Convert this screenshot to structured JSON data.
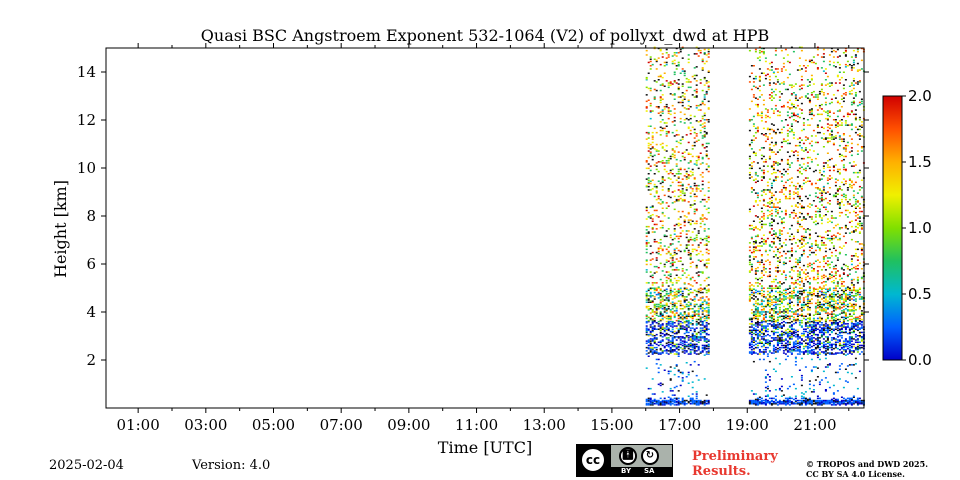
{
  "chart_data": {
    "type": "heatmap",
    "title": "Quasi BSC Angstroem Exponent 532-1064 (V2) of pollyxt_dwd at HPB",
    "xlabel": "Time [UTC]",
    "ylabel": "Height [km]",
    "xlim_hours": [
      0.05,
      22.45
    ],
    "ylim_km": [
      0,
      15
    ],
    "x_ticks": [
      {
        "hour": 1,
        "label": "01:00"
      },
      {
        "hour": 3,
        "label": "03:00"
      },
      {
        "hour": 5,
        "label": "05:00"
      },
      {
        "hour": 7,
        "label": "07:00"
      },
      {
        "hour": 9,
        "label": "09:00"
      },
      {
        "hour": 11,
        "label": "11:00"
      },
      {
        "hour": 13,
        "label": "13:00"
      },
      {
        "hour": 15,
        "label": "15:00"
      },
      {
        "hour": 17,
        "label": "17:00"
      },
      {
        "hour": 19,
        "label": "19:00"
      },
      {
        "hour": 21,
        "label": "21:00"
      }
    ],
    "y_ticks": [
      {
        "value": 2,
        "label": "2"
      },
      {
        "value": 4,
        "label": "4"
      },
      {
        "value": 6,
        "label": "6"
      },
      {
        "value": 8,
        "label": "8"
      },
      {
        "value": 10,
        "label": "10"
      },
      {
        "value": 12,
        "label": "12"
      },
      {
        "value": 14,
        "label": "14"
      }
    ],
    "colorbar": {
      "range": [
        0.0,
        2.0
      ],
      "ticks": [
        {
          "value": 0.0,
          "label": "0.0"
        },
        {
          "value": 0.5,
          "label": "0.5"
        },
        {
          "value": 1.0,
          "label": "1.0"
        },
        {
          "value": 1.5,
          "label": "1.5"
        },
        {
          "value": 2.0,
          "label": "2.0"
        }
      ],
      "colors": [
        "#0000c8",
        "#0060ff",
        "#00b8d0",
        "#20c060",
        "#80e000",
        "#f0f000",
        "#ffb000",
        "#ff5000",
        "#d00000"
      ]
    },
    "data_segments": [
      {
        "start_hour": 16.0,
        "end_hour": 17.85,
        "top_km": 15.0
      },
      {
        "start_hour": 19.05,
        "end_hour": 22.45,
        "top_km": 15.0
      }
    ],
    "features": [
      {
        "label": "low-level layer",
        "from_km": 2.2,
        "to_km": 3.6,
        "typical_value": 0.2
      },
      {
        "label": "aerosol layer",
        "from_km": 3.6,
        "to_km": 5.0,
        "typical_value": 1.0
      },
      {
        "label": "near-surface band",
        "from_km": 0.1,
        "to_km": 0.35,
        "typical_value": 0.1
      }
    ]
  },
  "footer": {
    "date": "2025-02-04",
    "version": "Version: 4.0",
    "preliminary_line1": "Preliminary",
    "preliminary_line2": "Results.",
    "copyright_line1": "© TROPOS and DWD 2025.",
    "copyright_line2": "CC BY SA 4.0 License.",
    "license_badge": {
      "cc": "cc",
      "by": "BY",
      "sa": "SA"
    }
  }
}
